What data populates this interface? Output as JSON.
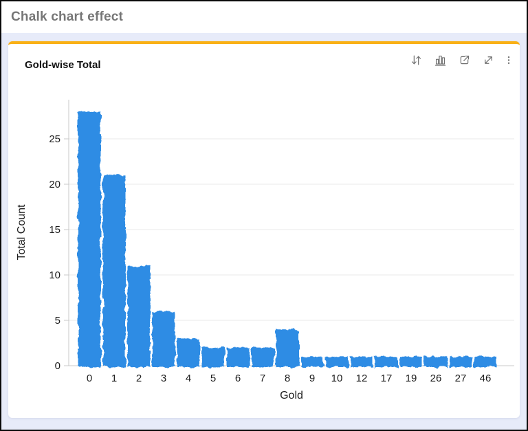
{
  "page": {
    "title": "Chalk chart effect",
    "background_color": "#E7EBF9",
    "frame_color": "#0A0A0A"
  },
  "chart_card": {
    "title": "Gold-wise Total",
    "accent_color": "#F9B016",
    "toolbar": {
      "items": [
        {
          "id": "sort",
          "icon": "sort-arrows-icon"
        },
        {
          "id": "chart-type",
          "icon": "bar-chart-icon"
        },
        {
          "id": "open-in-new",
          "icon": "open-in-new-icon"
        },
        {
          "id": "expand",
          "icon": "expand-diagonal-icon"
        },
        {
          "id": "more-options",
          "icon": "kebab-menu-icon"
        }
      ]
    }
  },
  "chart_data": {
    "type": "bar",
    "style": "chalk-effect",
    "title": "Gold-wise Total",
    "categories": [
      "0",
      "1",
      "2",
      "3",
      "4",
      "5",
      "6",
      "7",
      "8",
      "9",
      "10",
      "12",
      "17",
      "19",
      "26",
      "27",
      "46"
    ],
    "values": [
      28,
      21,
      11,
      6,
      3,
      2,
      2,
      2,
      4,
      1,
      1,
      1,
      1,
      1,
      1,
      1,
      1
    ],
    "xlabel": "Gold",
    "ylabel": "Total Count",
    "ylim": [
      0,
      28
    ],
    "yticks": [
      0,
      5,
      10,
      15,
      20,
      25
    ],
    "grid": true,
    "legend": false,
    "bar_color": "#2E8CE4",
    "grid_color": "#E8E8E8",
    "axis_color": "#C9C9C9",
    "tick_color": "#1C1C1C"
  }
}
